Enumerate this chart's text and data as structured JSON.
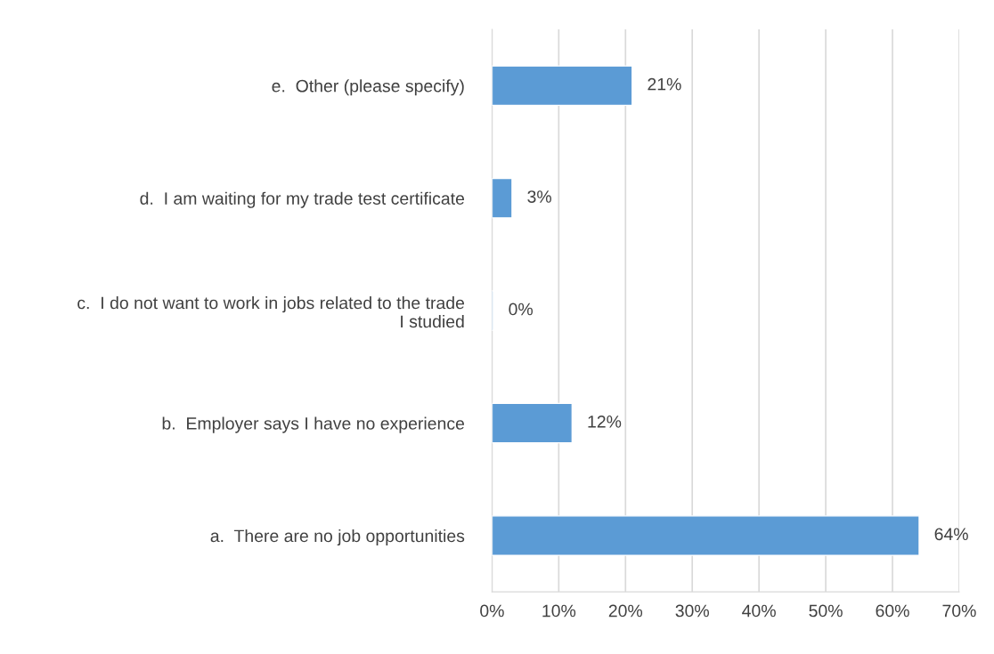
{
  "chart_data": {
    "type": "bar",
    "orientation": "horizontal",
    "categories": [
      "e.  Other (please specify)",
      "d.  I am waiting for my trade test certificate",
      "c.  I do not want to work in jobs related to the trade\nI studied",
      "b.  Employer says I have no experience",
      "a.  There are no job opportunities"
    ],
    "values": [
      21,
      3,
      0.2,
      12,
      64
    ],
    "value_labels": [
      "21%",
      "3%",
      "0%",
      "12%",
      "64%"
    ],
    "color": "#5b9bd5",
    "xlim": [
      0,
      70
    ],
    "xticks": [
      {
        "value": 0,
        "label": "0%"
      },
      {
        "value": 10,
        "label": "10%"
      },
      {
        "value": 20,
        "label": "20%"
      },
      {
        "value": 30,
        "label": "30%"
      },
      {
        "value": 40,
        "label": "40%"
      },
      {
        "value": 50,
        "label": "50%"
      },
      {
        "value": 60,
        "label": "60%"
      },
      {
        "value": 70,
        "label": "70%"
      }
    ],
    "grid": "x",
    "legend": false
  }
}
